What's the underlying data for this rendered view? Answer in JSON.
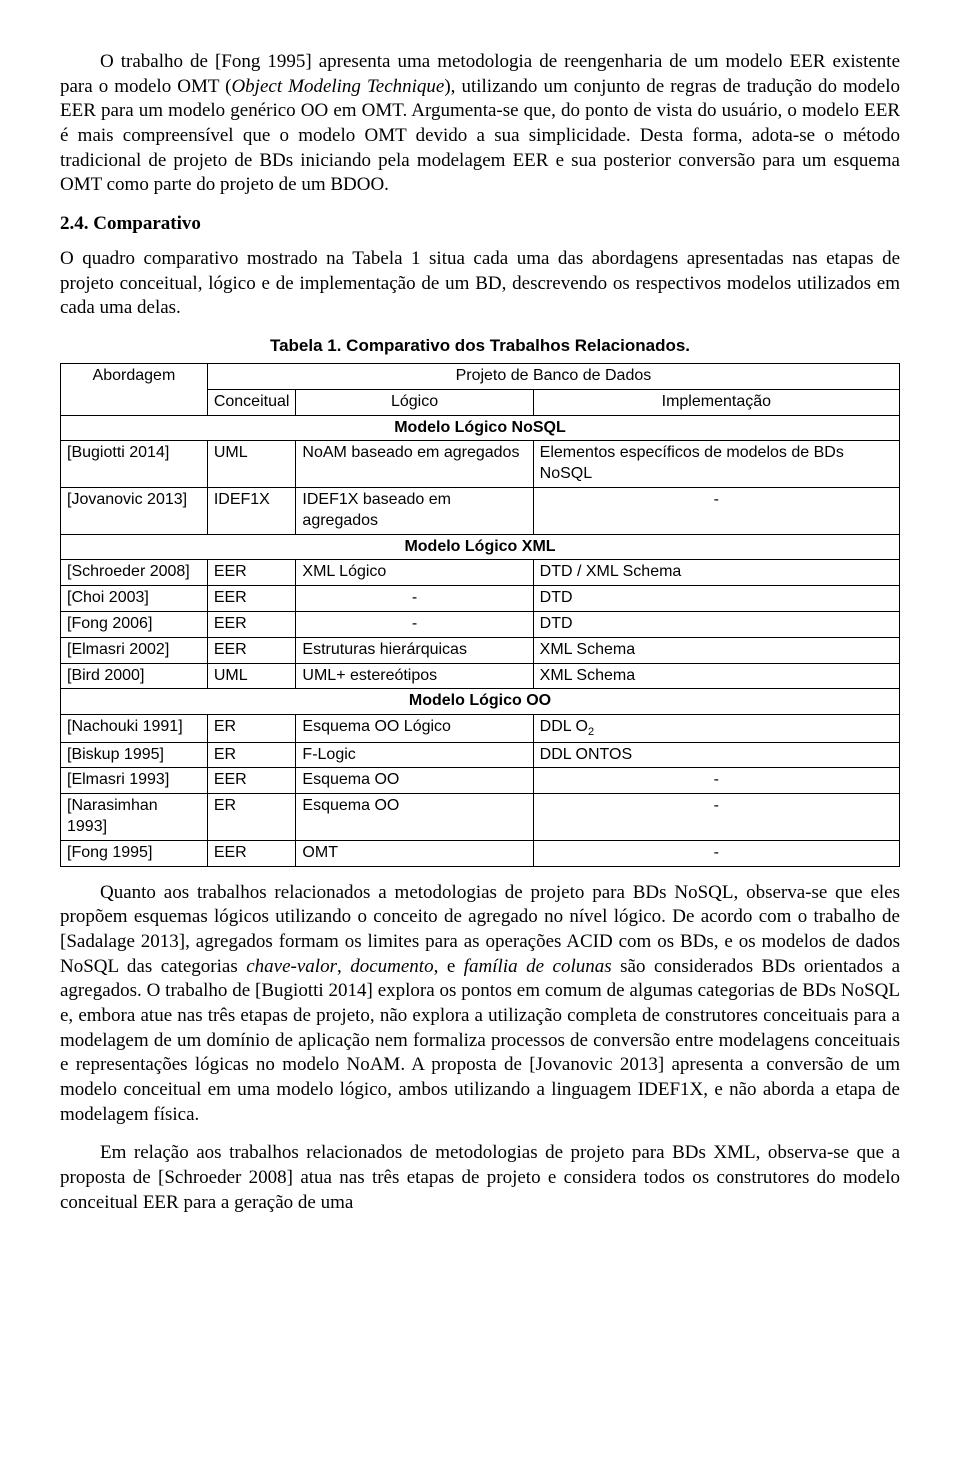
{
  "para1_pre": "O trabalho de [Fong 1995] apresenta uma metodologia de reengenharia de um modelo EER existente para o modelo OMT (",
  "para1_italic": "Object Modeling Technique",
  "para1_post": "), utilizando um conjunto de regras de tradução do modelo EER para um modelo genérico OO em OMT. Argumenta-se que, do ponto de vista do usuário, o modelo EER é mais compreensível que o modelo OMT devido a sua simplicidade. Desta forma, adota-se o método tradicional de projeto de BDs iniciando pela modelagem EER e sua posterior conversão para um esquema OMT como parte do projeto de um BDOO.",
  "heading": "2.4. Comparativo",
  "para2": "O quadro comparativo mostrado na Tabela 1 situa cada uma das abordagens apresentadas nas etapas de projeto conceitual, lógico e de implementação de um BD, descrevendo os respectivos modelos utilizados em cada uma delas.",
  "table_caption": "Tabela 1. Comparativo dos Trabalhos Relacionados.",
  "table": {
    "h_abordagem": "Abordagem",
    "h_projeto": "Projeto de Banco de Dados",
    "h_conceitual": "Conceitual",
    "h_logico": "Lógico",
    "h_impl": "Implementação",
    "sec_nosql": "Modelo Lógico NoSQL",
    "sec_xml": "Modelo Lógico XML",
    "sec_oo": "Modelo Lógico OO",
    "r1": {
      "a": "[Bugiotti 2014]",
      "c": "UML",
      "l": "NoAM baseado em agregados",
      "i": "Elementos específicos de modelos de BDs NoSQL"
    },
    "r2": {
      "a": "[Jovanovic 2013]",
      "c": "IDEF1X",
      "l": "IDEF1X baseado em agregados",
      "i": "-"
    },
    "r3": {
      "a": "[Schroeder 2008]",
      "c": "EER",
      "l": "XML Lógico",
      "i": "DTD / XML Schema"
    },
    "r4": {
      "a": "[Choi 2003]",
      "c": "EER",
      "l": "-",
      "i": "DTD"
    },
    "r5": {
      "a": "[Fong 2006]",
      "c": "EER",
      "l": "-",
      "i": "DTD"
    },
    "r6": {
      "a": "[Elmasri 2002]",
      "c": "EER",
      "l": "Estruturas hierárquicas",
      "i": "XML Schema"
    },
    "r7": {
      "a": "[Bird 2000]",
      "c": "UML",
      "l": "UML+ estereótipos",
      "i": "XML Schema"
    },
    "r8": {
      "a": "[Nachouki 1991]",
      "c": "ER",
      "l": "Esquema OO Lógico",
      "i_pre": "DDL O",
      "i_sub": "2"
    },
    "r9": {
      "a": "[Biskup 1995]",
      "c": "ER",
      "l": "F-Logic",
      "i": "DDL ONTOS"
    },
    "r10": {
      "a": "[Elmasri 1993]",
      "c": "EER",
      "l": "Esquema OO",
      "i": "-"
    },
    "r11": {
      "a": "[Narasimhan 1993]",
      "c": "ER",
      "l": "Esquema OO",
      "i": "-"
    },
    "r12": {
      "a": "[Fong 1995]",
      "c": "EER",
      "l": "OMT",
      "i": "-"
    }
  },
  "para3_pre": "Quanto aos trabalhos relacionados a metodologias de projeto para BDs NoSQL, observa-se que eles propõem esquemas lógicos utilizando o conceito de agregado no nível lógico. De acordo com o trabalho de [Sadalage 2013], agregados formam os limites para as operações ACID com os BDs, e os modelos de dados NoSQL das categorias ",
  "para3_i1": "chave-valor",
  "para3_m1": ", ",
  "para3_i2": "documento",
  "para3_m2": ", e ",
  "para3_i3": "família de colunas",
  "para3_post": " são considerados BDs orientados a agregados. O trabalho de [Bugiotti 2014] explora os pontos em comum de algumas categorias de BDs NoSQL e, embora atue nas três etapas de projeto, não explora a utilização completa de construtores conceituais para a modelagem de um domínio de aplicação nem formaliza processos de conversão entre modelagens conceituais e representações lógicas no modelo NoAM. A proposta de [Jovanovic 2013] apresenta a conversão de um modelo conceitual em uma modelo lógico, ambos utilizando a linguagem IDEF1X, e não aborda a etapa de modelagem física.",
  "para4": "Em relação aos trabalhos relacionados de metodologias de projeto para BDs XML, observa-se que a proposta de [Schroeder 2008] atua nas três etapas de projeto e considera todos os construtores do modelo conceitual EER para a geração de uma"
}
